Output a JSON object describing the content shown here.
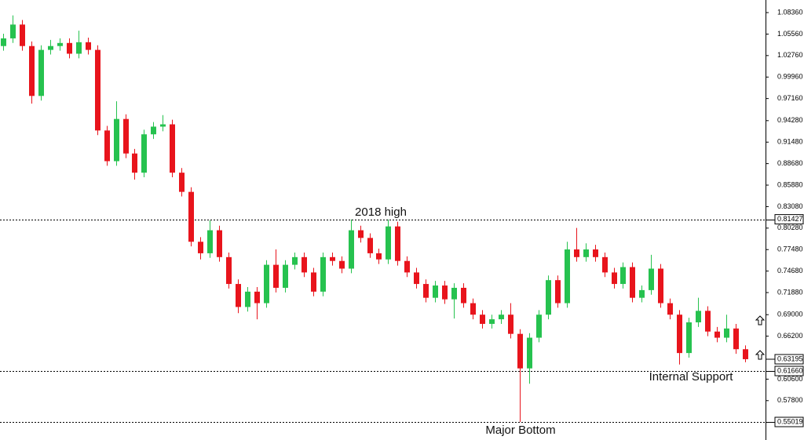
{
  "chart_data": {
    "type": "candlestick",
    "annotations": [
      "2018 high",
      "Internal Support",
      "Major Bottom"
    ],
    "up_color": "#26c24f",
    "down_color": "#e8141c",
    "open": [
      1.04,
      1.05,
      1.068,
      1.04,
      0.975,
      1.035,
      1.04,
      1.044,
      1.03,
      1.045,
      1.035,
      0.93,
      0.89,
      0.945,
      0.9,
      0.875,
      0.925,
      0.935,
      0.938,
      0.875,
      0.85,
      0.785,
      0.77,
      0.8,
      0.765,
      0.73,
      0.7,
      0.72,
      0.705,
      0.755,
      0.725,
      0.755,
      0.765,
      0.745,
      0.72,
      0.765,
      0.76,
      0.75,
      0.8,
      0.79,
      0.77,
      0.762,
      0.805,
      0.76,
      0.745,
      0.73,
      0.712,
      0.728,
      0.71,
      0.725,
      0.705,
      0.69,
      0.678,
      0.684,
      0.69,
      0.665,
      0.62,
      0.66,
      0.69,
      0.735,
      0.705,
      0.775,
      0.765,
      0.775,
      0.765,
      0.745,
      0.73,
      0.752,
      0.712,
      0.722,
      0.75,
      0.705,
      0.69,
      0.64,
      0.68,
      0.695,
      0.668,
      0.66,
      0.672,
      0.645
    ],
    "high": [
      1.056,
      1.08,
      1.074,
      1.046,
      1.041,
      1.048,
      1.05,
      1.05,
      1.06,
      1.051,
      1.041,
      0.936,
      0.968,
      0.951,
      0.906,
      0.931,
      0.941,
      0.95,
      0.944,
      0.881,
      0.856,
      0.791,
      0.813,
      0.806,
      0.771,
      0.736,
      0.726,
      0.726,
      0.761,
      0.775,
      0.761,
      0.771,
      0.771,
      0.751,
      0.771,
      0.771,
      0.766,
      0.814,
      0.806,
      0.796,
      0.776,
      0.814,
      0.811,
      0.766,
      0.751,
      0.736,
      0.734,
      0.734,
      0.731,
      0.731,
      0.711,
      0.696,
      0.69,
      0.696,
      0.705,
      0.671,
      0.666,
      0.696,
      0.741,
      0.741,
      0.785,
      0.803,
      0.783,
      0.781,
      0.771,
      0.751,
      0.758,
      0.758,
      0.728,
      0.768,
      0.756,
      0.711,
      0.696,
      0.686,
      0.712,
      0.701,
      0.674,
      0.69,
      0.678,
      0.65
    ],
    "low": [
      1.034,
      1.044,
      1.034,
      0.965,
      0.969,
      1.029,
      1.034,
      1.024,
      1.024,
      1.029,
      0.924,
      0.884,
      0.884,
      0.894,
      0.866,
      0.869,
      0.919,
      0.929,
      0.869,
      0.844,
      0.779,
      0.762,
      0.764,
      0.759,
      0.724,
      0.692,
      0.694,
      0.684,
      0.699,
      0.719,
      0.719,
      0.749,
      0.739,
      0.714,
      0.714,
      0.754,
      0.744,
      0.744,
      0.784,
      0.764,
      0.756,
      0.756,
      0.754,
      0.739,
      0.724,
      0.706,
      0.706,
      0.704,
      0.685,
      0.699,
      0.684,
      0.672,
      0.672,
      0.678,
      0.659,
      0.5502,
      0.6,
      0.654,
      0.684,
      0.699,
      0.699,
      0.759,
      0.759,
      0.759,
      0.739,
      0.724,
      0.724,
      0.706,
      0.706,
      0.716,
      0.699,
      0.684,
      0.625,
      0.634,
      0.674,
      0.662,
      0.654,
      0.654,
      0.639,
      0.628
    ],
    "close": [
      1.05,
      1.068,
      1.04,
      0.975,
      1.035,
      1.04,
      1.044,
      1.03,
      1.045,
      1.035,
      0.93,
      0.89,
      0.945,
      0.9,
      0.875,
      0.925,
      0.935,
      0.938,
      0.875,
      0.85,
      0.785,
      0.77,
      0.8,
      0.765,
      0.73,
      0.7,
      0.72,
      0.705,
      0.755,
      0.725,
      0.755,
      0.765,
      0.745,
      0.72,
      0.765,
      0.76,
      0.75,
      0.8,
      0.79,
      0.77,
      0.762,
      0.805,
      0.76,
      0.745,
      0.73,
      0.712,
      0.728,
      0.71,
      0.725,
      0.705,
      0.69,
      0.678,
      0.684,
      0.69,
      0.665,
      0.62,
      0.66,
      0.69,
      0.735,
      0.705,
      0.775,
      0.765,
      0.775,
      0.765,
      0.745,
      0.73,
      0.752,
      0.712,
      0.722,
      0.75,
      0.705,
      0.69,
      0.64,
      0.68,
      0.695,
      0.668,
      0.66,
      0.672,
      0.645,
      0.632
    ],
    "ylim": [
      0.5267,
      1.1
    ],
    "yticks": [
      {
        "value": 1.0836,
        "label": "1.08360"
      },
      {
        "value": 1.0556,
        "label": "1.05560"
      },
      {
        "value": 1.0276,
        "label": "1.02760"
      },
      {
        "value": 0.9996,
        "label": "0.99960"
      },
      {
        "value": 0.9716,
        "label": "0.97160"
      },
      {
        "value": 0.9428,
        "label": "0.94280"
      },
      {
        "value": 0.9148,
        "label": "0.91480"
      },
      {
        "value": 0.8868,
        "label": "0.88680"
      },
      {
        "value": 0.8588,
        "label": "0.85880"
      },
      {
        "value": 0.8308,
        "label": "0.83080"
      },
      {
        "value": 0.8028,
        "label": "0.80280"
      },
      {
        "value": 0.7748,
        "label": "0.77480"
      },
      {
        "value": 0.7468,
        "label": "0.74680"
      },
      {
        "value": 0.7188,
        "label": "0.71880"
      },
      {
        "value": 0.69,
        "label": "0.69000"
      },
      {
        "value": 0.662,
        "label": "0.66200"
      },
      {
        "value": 0.606,
        "label": "0.60600"
      },
      {
        "value": 0.578,
        "label": "0.57800"
      }
    ],
    "levels": [
      {
        "value": 0.81427,
        "label": "0.81427"
      },
      {
        "value": 0.6166,
        "label": "0.61660"
      },
      {
        "value": 0.55019,
        "label": "0.55019"
      }
    ],
    "last_price": {
      "value": 0.63195,
      "label": "0.63195"
    }
  }
}
